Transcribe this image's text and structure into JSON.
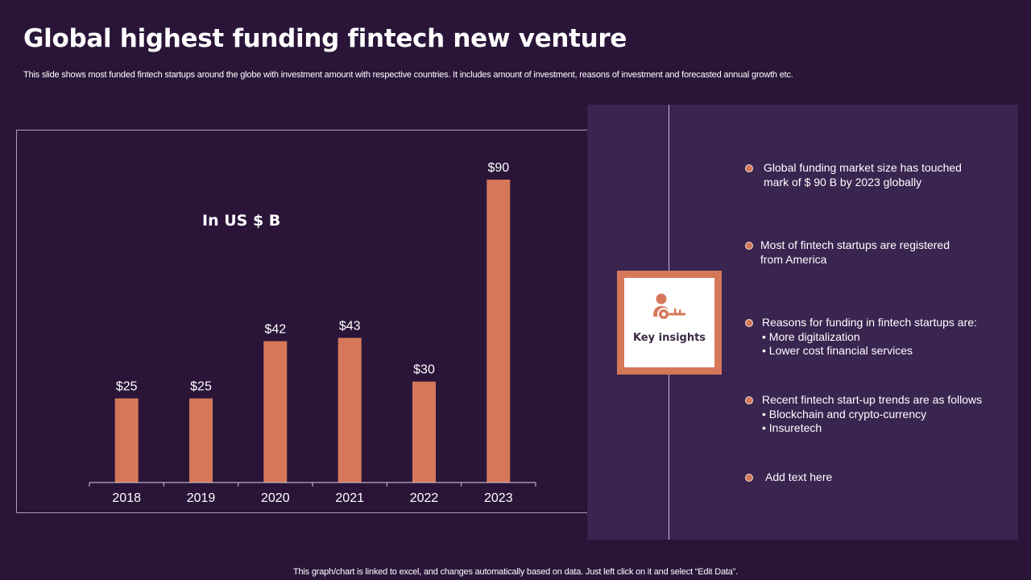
{
  "title": "Global highest funding fintech new venture",
  "subtitle": "This slide shows most funded fintech startups around the globe with investment amount with respective countries. It includes amount of investment, reasons of investment and forecasted annual growth etc.",
  "colors": {
    "background": "#2a1539",
    "panel": "#3a2450",
    "accent": "#d5785a"
  },
  "chart_data": {
    "type": "bar",
    "categories": [
      "2018",
      "2019",
      "2020",
      "2021",
      "2022",
      "2023"
    ],
    "values": [
      25,
      25,
      42,
      43,
      30,
      90
    ],
    "data_labels": [
      "$25",
      "$25",
      "$42",
      "$43",
      "$30",
      "$90"
    ],
    "unit_label": "In US $ B",
    "xlabel": "",
    "ylabel": "",
    "ylim": [
      0,
      90
    ],
    "bar_color": "#d5785a",
    "grid": false,
    "legend": "none"
  },
  "key_insights": {
    "icon": "key-person-icon",
    "label": "Key insights"
  },
  "insights": [
    {
      "lines": [
        "Global funding  market size has touched",
        "mark of $ 90 B by 2023 globally"
      ]
    },
    {
      "lines": [
        "Most of fintech startups are registered",
        "from America"
      ]
    },
    {
      "lines": [
        "Reasons for funding in fintech startups are:",
        "•   More digitalization",
        "•   Lower cost financial services"
      ]
    },
    {
      "lines": [
        "Recent fintech start-up trends are as follows",
        "•   Blockchain and crypto-currency",
        "•   Insuretech"
      ]
    },
    {
      "lines": [
        "Add text here"
      ]
    }
  ],
  "footnote": "This graph/chart is linked to excel,  and changes automatically based on data. Just left click on it and select “Edit Data”."
}
